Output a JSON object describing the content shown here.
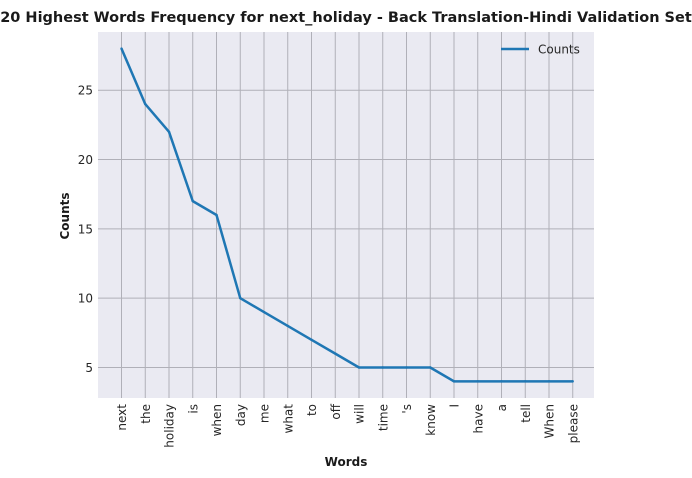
{
  "chart_data": {
    "type": "line",
    "title": "20 Highest Words Frequency for next_holiday - Back Translation-Hindi Validation Set",
    "xlabel": "Words",
    "ylabel": "Counts",
    "categories": [
      "next",
      "the",
      "holiday",
      "is",
      "when",
      "day",
      "me",
      "what",
      "to",
      "off",
      "will",
      "time",
      "'s",
      "know",
      "I",
      "have",
      "a",
      "tell",
      "When",
      "please"
    ],
    "series": [
      {
        "name": "Counts",
        "color": "#1f77b4",
        "values": [
          28,
          24,
          22,
          17,
          16,
          10,
          9,
          8,
          7,
          6,
          5,
          5,
          5,
          5,
          4,
          4,
          4,
          4,
          4,
          4
        ]
      }
    ],
    "yticks": [
      5,
      10,
      15,
      20,
      25
    ],
    "ylim": [
      2.8,
      29.2
    ],
    "grid": true,
    "legend": "top-right",
    "background": "#eaeaf2",
    "grid_color": "#b0b0b8"
  }
}
